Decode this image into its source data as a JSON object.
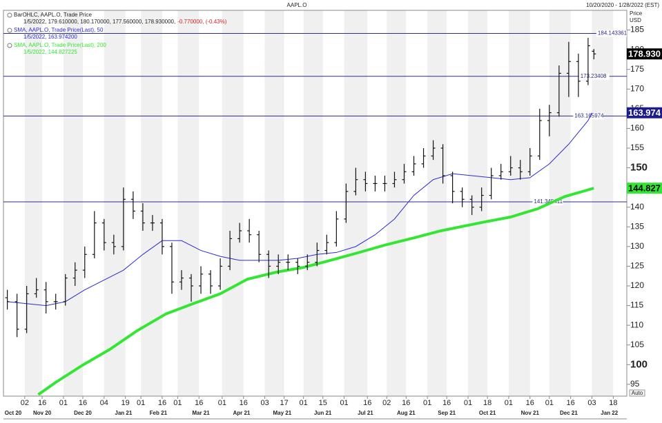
{
  "chart_data": {
    "type": "ohlc",
    "title": "AAPL.O",
    "date_range": "10/20/2020 - 1/28/2022 (EST)",
    "y_label": "Price",
    "y_unit": "USD",
    "auto_button": "Auto",
    "xlim": [
      -2,
      320
    ],
    "ylim": [
      92,
      190
    ],
    "yticks": [
      95,
      100,
      105,
      110,
      115,
      120,
      125,
      130,
      135,
      140,
      145,
      150,
      155,
      160,
      165,
      170,
      175,
      180,
      185
    ],
    "ytick_bold": [
      100,
      150
    ],
    "xticks": [
      {
        "value": 9,
        "label": "02"
      },
      {
        "value": 18,
        "label": "16"
      },
      {
        "value": 29,
        "label": "01"
      },
      {
        "value": 39,
        "label": "16"
      },
      {
        "value": 50,
        "label": "04"
      },
      {
        "value": 61,
        "label": "19"
      },
      {
        "value": 69,
        "label": "01"
      },
      {
        "value": 80,
        "label": "16"
      },
      {
        "value": 88,
        "label": "01"
      },
      {
        "value": 99,
        "label": "16"
      },
      {
        "value": 111,
        "label": "01"
      },
      {
        "value": 122,
        "label": "16"
      },
      {
        "value": 133,
        "label": "03"
      },
      {
        "value": 143,
        "label": "17"
      },
      {
        "value": 153,
        "label": "01"
      },
      {
        "value": 163,
        "label": "15"
      },
      {
        "value": 174,
        "label": "01"
      },
      {
        "value": 186,
        "label": "16"
      },
      {
        "value": 196,
        "label": "02"
      },
      {
        "value": 206,
        "label": "16"
      },
      {
        "value": 217,
        "label": "01"
      },
      {
        "value": 227,
        "label": "16"
      },
      {
        "value": 238,
        "label": "01"
      },
      {
        "value": 248,
        "label": "18"
      },
      {
        "value": 259,
        "label": "01"
      },
      {
        "value": 270,
        "label": "16"
      },
      {
        "value": 280,
        "label": "01"
      },
      {
        "value": 291,
        "label": "16"
      },
      {
        "value": 302,
        "label": "03"
      },
      {
        "value": 313,
        "label": "18"
      }
    ],
    "xmonths": [
      {
        "value": 3,
        "label": "Oct 20"
      },
      {
        "value": 18,
        "label": "Nov 20"
      },
      {
        "value": 39,
        "label": "Dec 20"
      },
      {
        "value": 60,
        "label": "Jan 21"
      },
      {
        "value": 78,
        "label": "Feb 21"
      },
      {
        "value": 100,
        "label": "Mar 21"
      },
      {
        "value": 121,
        "label": "Apr 21"
      },
      {
        "value": 142,
        "label": "May 21"
      },
      {
        "value": 163,
        "label": "Jun 21"
      },
      {
        "value": 185,
        "label": "Jul 21"
      },
      {
        "value": 206,
        "label": "Aug 21"
      },
      {
        "value": 227,
        "label": "Sep 21"
      },
      {
        "value": 248,
        "label": "Oct 21"
      },
      {
        "value": 270,
        "label": "Nov 21"
      },
      {
        "value": 290,
        "label": "Dec 21"
      },
      {
        "value": 311,
        "label": "Jan 22"
      }
    ],
    "hlines": [
      184.143361,
      173.23408,
      163.165974,
      141.345411
    ],
    "hline_label_x": [
      305,
      296,
      293,
      272
    ],
    "hline_color": "#2a2a8a",
    "series": [
      {
        "name": "BarOHLC, AAPL.O, Trade Price",
        "readout": "1/5/2022, 179.610000, 180.170000, 177.560000, 178.930000,",
        "change": "-0.770000, (-0.43%)",
        "color": "#111111",
        "legend_color": "#222222",
        "change_color": "#d42020",
        "tag": {
          "value": 178.93,
          "label": "178.930"
        },
        "tag_color": "#000000",
        "tag_text_color": "#ffffff",
        "x": [
          0,
          5,
          10,
          15,
          20,
          25,
          30,
          35,
          40,
          45,
          50,
          55,
          60,
          65,
          70,
          75,
          80,
          85,
          90,
          95,
          100,
          105,
          110,
          115,
          120,
          125,
          130,
          135,
          140,
          145,
          150,
          155,
          160,
          165,
          170,
          175,
          180,
          185,
          190,
          195,
          200,
          205,
          210,
          215,
          220,
          225,
          230,
          235,
          240,
          245,
          250,
          255,
          260,
          265,
          270,
          275,
          280,
          285,
          290,
          295,
          300,
          303
        ],
        "open": [
          117,
          116,
          109,
          118,
          119,
          116,
          116,
          122,
          124,
          128,
          136,
          131,
          130,
          142,
          139,
          136,
          136,
          130,
          121,
          122,
          120,
          123,
          120,
          125,
          132,
          134,
          133,
          128,
          125,
          126,
          126,
          125,
          126,
          129,
          131,
          137,
          144,
          147,
          146,
          146,
          146,
          147,
          149,
          151,
          153,
          155,
          148,
          144,
          142,
          140,
          143,
          148,
          149,
          150,
          149,
          153,
          162,
          164,
          174,
          177,
          172,
          179.61
        ],
        "high": [
          119,
          118,
          120,
          122,
          121,
          118,
          123,
          126,
          130,
          139,
          137,
          133,
          145,
          144,
          141,
          138,
          137,
          131,
          124,
          123,
          125,
          124,
          127,
          134,
          136,
          137,
          134,
          129,
          128,
          128,
          127,
          128,
          131,
          133,
          139,
          146,
          150,
          149,
          148,
          148,
          149,
          151,
          153,
          155,
          157,
          156,
          149,
          145,
          143,
          145,
          150,
          151,
          153,
          152,
          155,
          165,
          166,
          176,
          182,
          179,
          183,
          180.17
        ],
        "low": [
          114,
          107,
          108,
          117,
          113,
          114,
          115,
          120,
          122,
          127,
          129,
          128,
          129,
          137,
          134,
          134,
          128,
          118,
          119,
          116,
          118,
          118,
          119,
          124,
          131,
          131,
          126,
          122,
          123,
          124,
          123,
          124,
          125,
          128,
          130,
          136,
          143,
          144,
          144,
          144,
          145,
          146,
          148,
          150,
          152,
          146,
          141,
          140,
          138,
          139,
          142,
          147,
          148,
          147,
          148,
          152,
          158,
          163,
          168,
          168,
          171,
          177.56
        ],
        "close": [
          116,
          109,
          118,
          119,
          116,
          116,
          122,
          124,
          128,
          136,
          131,
          130,
          142,
          139,
          136,
          136,
          130,
          121,
          122,
          120,
          123,
          120,
          125,
          132,
          134,
          133,
          128,
          125,
          126,
          126,
          125,
          126,
          129,
          131,
          137,
          144,
          147,
          146,
          146,
          146,
          147,
          149,
          151,
          153,
          155,
          148,
          144,
          142,
          140,
          143,
          148,
          149,
          150,
          149,
          153,
          162,
          164,
          174,
          177,
          172,
          181,
          178.93
        ]
      },
      {
        "name": "SMA, AAPL.O, Trade Price(Last), 50",
        "readout": "1/5/2022, 163.974200",
        "color": "#2b2bd0",
        "legend_color": "#2b2bd0",
        "tag": {
          "value": 163.9742,
          "label": "163.974"
        },
        "tag_color": "#1c1c8c",
        "tag_text_color": "#ffffff",
        "x": [
          0,
          10,
          20,
          30,
          40,
          50,
          60,
          70,
          80,
          90,
          100,
          110,
          120,
          130,
          140,
          150,
          160,
          170,
          180,
          190,
          200,
          210,
          220,
          230,
          240,
          250,
          260,
          270,
          280,
          290,
          300,
          302
        ],
        "values": [
          116,
          115.5,
          115,
          116,
          119,
          121.5,
          124,
          128,
          131.5,
          131.5,
          129,
          127.5,
          126.5,
          126.5,
          126.5,
          127,
          128,
          128.5,
          130,
          133,
          137,
          143,
          147,
          148.5,
          148,
          147.5,
          147,
          147.5,
          151,
          156,
          162,
          163.9742
        ]
      },
      {
        "name": "SMA, AAPL.O, Trade Price(Last), 200",
        "readout": "1/5/2022, 144.827225",
        "color": "#33e633",
        "legend_color": "#33e633",
        "tag": {
          "value": 144.827225,
          "label": "144.827"
        },
        "tag_color": "#33e633",
        "tag_text_color": "#000000",
        "x": [
          16,
          25,
          39,
          53,
          67,
          82,
          96,
          110,
          124,
          139,
          153,
          167,
          181,
          196,
          210,
          224,
          246,
          260,
          274,
          288,
          303
        ],
        "values": [
          92.4,
          95.5,
          99.9,
          103.9,
          108.6,
          112.9,
          115.5,
          118,
          121.7,
          123.5,
          124.7,
          126.5,
          128.4,
          130.5,
          132.2,
          134,
          136.2,
          137.5,
          139.6,
          142.7,
          144.827225
        ]
      }
    ]
  }
}
